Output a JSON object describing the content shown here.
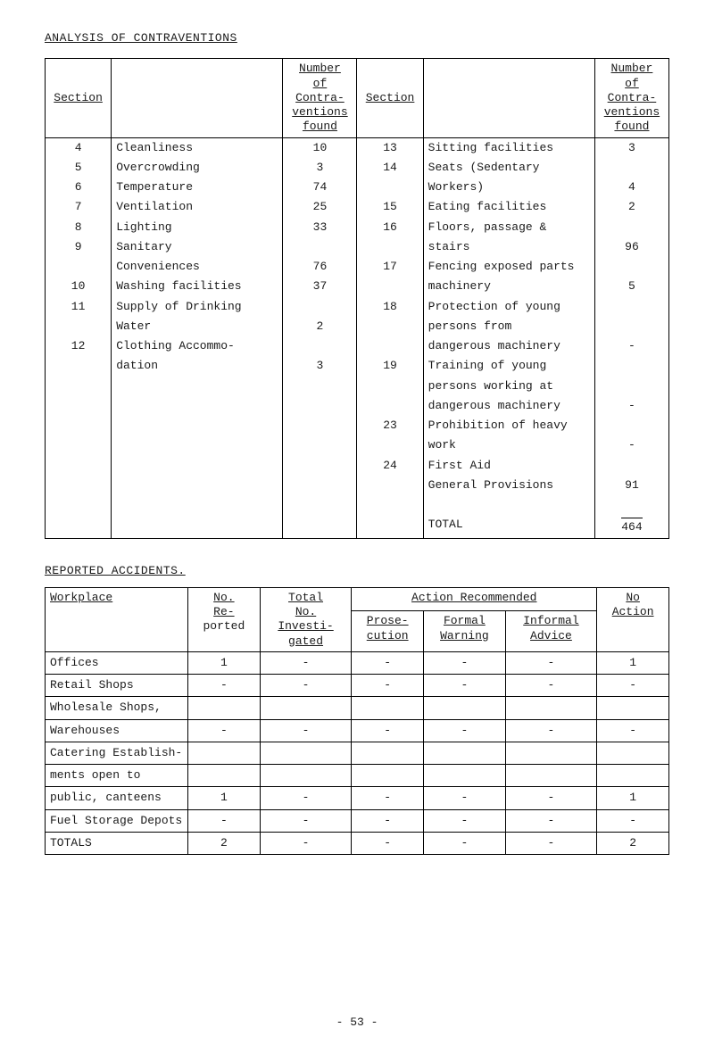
{
  "page": {
    "title": "ANALYSIS OF CONTRAVENTIONS",
    "footer": "- 53 -"
  },
  "t1": {
    "hdr_section": "Section",
    "hdr_number": "Number",
    "hdr_of": "of",
    "hdr_contra": "Contra-",
    "hdr_ventions": "ventions",
    "hdr_found": "found",
    "left": [
      {
        "sec": "4",
        "desc": "Cleanliness",
        "cnt": "10"
      },
      {
        "sec": "5",
        "desc": "Overcrowding",
        "cnt": "3"
      },
      {
        "sec": "6",
        "desc": "Temperature",
        "cnt": "74"
      },
      {
        "sec": "7",
        "desc": "Ventilation",
        "cnt": "25"
      },
      {
        "sec": "8",
        "desc": "Lighting",
        "cnt": "33"
      },
      {
        "sec": "9",
        "desc": "Sanitary",
        "cnt": ""
      },
      {
        "sec": "",
        "desc": "Conveniences",
        "cnt": "76"
      },
      {
        "sec": "10",
        "desc": "Washing facilities",
        "cnt": "37"
      },
      {
        "sec": "11",
        "desc": "Supply of Drinking",
        "cnt": ""
      },
      {
        "sec": "",
        "desc": "Water",
        "cnt": "2"
      },
      {
        "sec": "12",
        "desc": "Clothing Accommo-",
        "cnt": ""
      },
      {
        "sec": "",
        "desc": "dation",
        "cnt": "3"
      }
    ],
    "right": [
      {
        "sec": "13",
        "desc": "Sitting facilities",
        "cnt": "3"
      },
      {
        "sec": "14",
        "desc": "Seats (Sedentary",
        "cnt": ""
      },
      {
        "sec": "",
        "desc": "Workers)",
        "cnt": "4"
      },
      {
        "sec": "15",
        "desc": "Eating facilities",
        "cnt": "2"
      },
      {
        "sec": "16",
        "desc": "Floors, passage &",
        "cnt": ""
      },
      {
        "sec": "",
        "desc": "stairs",
        "cnt": "96"
      },
      {
        "sec": "17",
        "desc": "Fencing exposed parts",
        "cnt": ""
      },
      {
        "sec": "",
        "desc": "machinery",
        "cnt": "5"
      },
      {
        "sec": "18",
        "desc": "Protection of young",
        "cnt": ""
      },
      {
        "sec": "",
        "desc": "persons from",
        "cnt": ""
      },
      {
        "sec": "",
        "desc": "dangerous machinery",
        "cnt": "-"
      },
      {
        "sec": "19",
        "desc": "Training of young",
        "cnt": ""
      },
      {
        "sec": "",
        "desc": "persons working at",
        "cnt": ""
      },
      {
        "sec": "",
        "desc": "dangerous machinery",
        "cnt": "-"
      },
      {
        "sec": "23",
        "desc": "Prohibition of heavy",
        "cnt": ""
      },
      {
        "sec": "",
        "desc": "work",
        "cnt": "-"
      },
      {
        "sec": "24",
        "desc": "First Aid",
        "cnt": ""
      },
      {
        "sec": "",
        "desc": "General Provisions",
        "cnt": "91"
      }
    ],
    "total_label": "TOTAL",
    "total_value": "464"
  },
  "t2": {
    "title": "REPORTED ACCIDENTS.",
    "hdr_workplace": "Workplace",
    "hdr_no": "No.",
    "hdr_re": "Re-",
    "hdr_ported": "ported",
    "hdr_total": "Total",
    "hdr_totalno": "No.",
    "hdr_invest": "Investi-",
    "hdr_gated": "gated",
    "hdr_action": "Action Recommended",
    "hdr_prose": "Prose-",
    "hdr_cution": "cution",
    "hdr_formal": "Formal",
    "hdr_warning": "Warning",
    "hdr_informal": "Informal",
    "hdr_advice": "Advice",
    "hdr_noaction_no": "No",
    "hdr_noaction": "Action",
    "rows": [
      {
        "w": "Offices",
        "r": "1",
        "i": "-",
        "p": "-",
        "f": "-",
        "a": "-",
        "n": "1"
      },
      {
        "w": "Retail Shops",
        "r": "-",
        "i": "-",
        "p": "-",
        "f": "-",
        "a": "-",
        "n": "-"
      },
      {
        "w": "Wholesale Shops,",
        "r": "",
        "i": "",
        "p": "",
        "f": "",
        "a": "",
        "n": ""
      },
      {
        "w": "Warehouses",
        "r": "-",
        "i": "-",
        "p": "-",
        "f": "-",
        "a": "-",
        "n": "-"
      },
      {
        "w": "Catering Establish-",
        "r": "",
        "i": "",
        "p": "",
        "f": "",
        "a": "",
        "n": ""
      },
      {
        "w": "ments open to",
        "r": "",
        "i": "",
        "p": "",
        "f": "",
        "a": "",
        "n": ""
      },
      {
        "w": "public, canteens",
        "r": "1",
        "i": "-",
        "p": "-",
        "f": "-",
        "a": "-",
        "n": "1"
      },
      {
        "w": "Fuel Storage Depots",
        "r": "-",
        "i": "-",
        "p": "-",
        "f": "-",
        "a": "-",
        "n": "-"
      }
    ],
    "totals_label": "TOTALS",
    "totals": {
      "r": "2",
      "i": "-",
      "p": "-",
      "f": "-",
      "a": "-",
      "n": "2"
    }
  }
}
